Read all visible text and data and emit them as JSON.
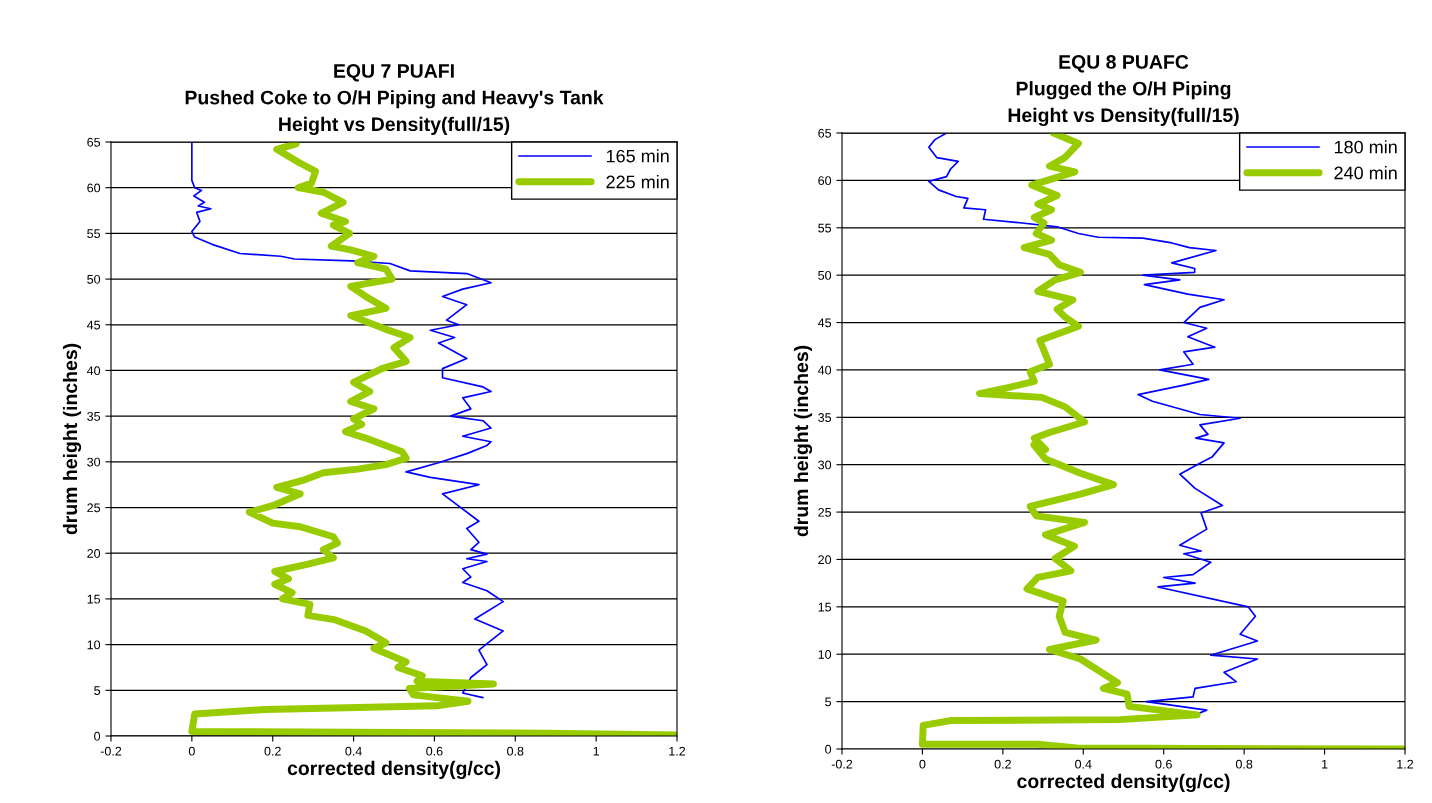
{
  "chart_data": [
    {
      "type": "line",
      "title": "EQU 7 PUAFI\nPushed Coke to O/H Piping and Heavy's Tank\nHeight vs Density(full/15)",
      "xlabel": "corrected density(g/cc)",
      "ylabel": "drum height (inches)",
      "xlim": [
        -0.2,
        1.2
      ],
      "xticks": [
        -0.2,
        0,
        0.2,
        0.4,
        0.6,
        0.8,
        1,
        1.2
      ],
      "ylim": [
        0,
        65
      ],
      "yticks": [
        0,
        5,
        10,
        15,
        20,
        25,
        30,
        35,
        40,
        45,
        50,
        55,
        60,
        65
      ],
      "grid": "y",
      "legend": "top right",
      "marker": "none",
      "line_style": "solid",
      "series": [
        {
          "name": "165 min",
          "color": "#0000ff",
          "x": [
            0.0,
            0.0,
            0.0,
            0.0,
            0.007,
            0.024,
            0.005,
            0.031,
            0.016,
            0.047,
            0.012,
            0.02,
            0.0,
            0.007,
            0.05,
            0.119,
            0.22,
            0.254,
            0.395,
            0.49,
            0.54,
            0.68,
            0.74,
            0.67,
            0.62,
            0.68,
            0.63,
            0.66,
            0.59,
            0.65,
            0.61,
            0.68,
            0.62,
            0.62,
            0.72,
            0.74,
            0.67,
            0.69,
            0.64,
            0.72,
            0.74,
            0.67,
            0.74,
            0.73,
            0.68,
            0.61,
            0.53,
            0.59,
            0.71,
            0.62,
            0.71,
            0.68,
            0.71,
            0.69,
            0.73,
            0.68,
            0.73,
            0.67,
            0.69,
            0.67,
            0.73,
            0.77,
            0.7,
            0.77,
            0.71,
            0.73,
            0.69,
            0.67,
            0.72
          ],
          "values": [
            65,
            64.6,
            62,
            60.8,
            60,
            59.7,
            59.1,
            58.4,
            58,
            57.7,
            57.3,
            56.3,
            55.2,
            54.6,
            53.8,
            52.8,
            52.5,
            52.2,
            52,
            51.7,
            50.9,
            50.6,
            49.6,
            48.9,
            48.1,
            47.2,
            45.5,
            45,
            44.4,
            43.6,
            43,
            41.3,
            40.2,
            39.2,
            38.2,
            37.7,
            37,
            35.8,
            35,
            34.5,
            33.7,
            32.8,
            32.2,
            31.8,
            30.9,
            29.9,
            28.9,
            28.3,
            27.5,
            26.5,
            23.5,
            22.7,
            21.2,
            20.4,
            19.9,
            19.4,
            19.1,
            18.3,
            17.4,
            16.8,
            15.9,
            14.7,
            12.8,
            11.5,
            9.4,
            7.8,
            6.4,
            4.7,
            4.2
          ]
        },
        {
          "name": "225 min",
          "color": "#99cc00",
          "x": [
            0.258,
            0.21,
            0.267,
            0.306,
            0.296,
            0.263,
            0.326,
            0.374,
            0.32,
            0.38,
            0.35,
            0.39,
            0.345,
            0.393,
            0.45,
            0.41,
            0.48,
            0.495,
            0.393,
            0.43,
            0.48,
            0.393,
            0.48,
            0.54,
            0.5,
            0.53,
            0.47,
            0.4,
            0.44,
            0.393,
            0.45,
            0.4,
            0.42,
            0.38,
            0.43,
            0.52,
            0.53,
            0.48,
            0.41,
            0.325,
            0.277,
            0.21,
            0.268,
            0.2,
            0.142,
            0.2,
            0.268,
            0.35,
            0.36,
            0.325,
            0.35,
            0.287,
            0.205,
            0.239,
            0.205,
            0.248,
            0.224,
            0.292,
            0.287,
            0.355,
            0.43,
            0.48,
            0.45,
            0.53,
            0.51,
            0.57,
            0.557,
            0.746,
            0.538,
            0.548,
            0.683,
            0.606,
            0.297,
            0.18,
            0.007,
            0.0,
            0.393,
            0.876,
            1.2
          ],
          "values": [
            64.8,
            64.2,
            62.7,
            61.8,
            60.5,
            60,
            59.5,
            58.4,
            57.2,
            56.3,
            55.9,
            55,
            53.6,
            53.2,
            52.5,
            51.8,
            51.1,
            50,
            49.2,
            48.1,
            46.8,
            46,
            44.5,
            43.6,
            42.5,
            41,
            40.2,
            38.7,
            37.7,
            36.6,
            35.8,
            34.7,
            34.1,
            33.3,
            32.6,
            31.1,
            30.4,
            29.7,
            29.2,
            28.8,
            28,
            27.2,
            26.5,
            25.2,
            24.5,
            23.3,
            22.9,
            21.8,
            21.1,
            20.4,
            19.5,
            18.8,
            18,
            17.2,
            16.6,
            15.7,
            15,
            14.4,
            13.2,
            12.7,
            11.5,
            10.2,
            9.6,
            8.1,
            7.5,
            6.6,
            6,
            5.7,
            5.2,
            4.5,
            3.8,
            3.3,
            3.0,
            2.9,
            2.4,
            0.5,
            0.4,
            0.3,
            0.1
          ]
        }
      ]
    },
    {
      "type": "line",
      "title": "EQU 8 PUAFC\nPlugged the O/H Piping\nHeight vs Density(full/15)",
      "xlabel": "corrected density(g/cc)",
      "ylabel": "drum height (inches)",
      "xlim": [
        -0.2,
        1.2
      ],
      "xticks": [
        -0.2,
        0,
        0.2,
        0.4,
        0.6,
        0.8,
        1,
        1.2
      ],
      "ylim": [
        0,
        65
      ],
      "yticks": [
        0,
        5,
        10,
        15,
        20,
        25,
        30,
        35,
        40,
        45,
        50,
        55,
        60,
        65
      ],
      "grid": "y",
      "legend": "top right",
      "marker": "none",
      "line_style": "solid",
      "series": [
        {
          "name": "180 min",
          "color": "#0000ff",
          "x": [
            0.06,
            0.031,
            0.016,
            0.036,
            0.089,
            0.07,
            0.06,
            0.016,
            0.04,
            0.084,
            0.113,
            0.103,
            0.157,
            0.152,
            0.248,
            0.335,
            0.388,
            0.437,
            0.548,
            0.62,
            0.664,
            0.73,
            0.62,
            0.677,
            0.677,
            0.548,
            0.64,
            0.552,
            0.66,
            0.75,
            0.69,
            0.65,
            0.707,
            0.66,
            0.727,
            0.65,
            0.673,
            0.59,
            0.712,
            0.65,
            0.536,
            0.572,
            0.69,
            0.79,
            0.69,
            0.71,
            0.68,
            0.75,
            0.72,
            0.683,
            0.64,
            0.678,
            0.746,
            0.693,
            0.707,
            0.64,
            0.693,
            0.65,
            0.717,
            0.673,
            0.6,
            0.678,
            0.586,
            0.81,
            0.828,
            0.79,
            0.833,
            0.717,
            0.833,
            0.75,
            0.78,
            0.678,
            0.673,
            0.557,
            0.707,
            0.683
          ],
          "values": [
            65,
            64.3,
            63.5,
            62.4,
            62,
            61.2,
            60.4,
            59.9,
            59,
            58.3,
            58.1,
            57.1,
            56.9,
            55.9,
            55.5,
            55.1,
            54.4,
            54,
            53.9,
            53.4,
            52.9,
            52.6,
            51.3,
            50.7,
            50.3,
            50,
            49.5,
            49,
            48,
            47.4,
            46.6,
            45,
            44.4,
            43.5,
            42.4,
            41.9,
            40.6,
            40,
            39,
            38.4,
            37.4,
            36.7,
            35.3,
            34.9,
            34.2,
            33.2,
            32.8,
            32.3,
            30.8,
            30,
            29,
            27.5,
            25.7,
            24.9,
            23.2,
            21.5,
            20.9,
            20.6,
            19.7,
            18.4,
            18.1,
            17.5,
            17.1,
            15,
            14,
            12.1,
            11.4,
            9.9,
            9.5,
            8.1,
            7.1,
            6.4,
            5.5,
            5,
            4.1,
            3.7
          ]
        },
        {
          "name": "240 min",
          "color": "#99cc00",
          "x": [
            0.326,
            0.388,
            0.354,
            0.316,
            0.379,
            0.272,
            0.335,
            0.287,
            0.321,
            0.278,
            0.302,
            0.283,
            0.321,
            0.253,
            0.316,
            0.34,
            0.393,
            0.33,
            0.287,
            0.374,
            0.335,
            0.354,
            0.388,
            0.292,
            0.316,
            0.268,
            0.278,
            0.21,
            0.142,
            0.297,
            0.355,
            0.403,
            0.316,
            0.278,
            0.306,
            0.277,
            0.306,
            0.393,
            0.475,
            0.393,
            0.268,
            0.283,
            0.403,
            0.306,
            0.378,
            0.33,
            0.369,
            0.287,
            0.26,
            0.35,
            0.34,
            0.355,
            0.432,
            0.316,
            0.393,
            0.485,
            0.45,
            0.509,
            0.514,
            0.683,
            0.49,
            0.07,
            0.002,
            0.0,
            0.287,
            0.384,
            1.2
          ],
          "values": [
            65,
            63.9,
            62.4,
            61.5,
            60.9,
            59.5,
            58.4,
            57.5,
            56.9,
            56.1,
            55.5,
            54.4,
            53.7,
            52.9,
            52.2,
            51.1,
            50.3,
            49.5,
            48.3,
            47.4,
            46.4,
            45.6,
            44.6,
            43.1,
            40.6,
            39.8,
            38.8,
            38.1,
            37.5,
            37.1,
            36.1,
            34.5,
            33.4,
            32.8,
            31.6,
            32.1,
            30.6,
            29.1,
            27.9,
            26.9,
            25.6,
            24.6,
            23.9,
            22.6,
            21.4,
            20.1,
            18.8,
            18.1,
            16.9,
            15.6,
            14,
            12.3,
            11.5,
            10.5,
            9.5,
            7,
            6.4,
            5.8,
            4.5,
            3.6,
            3.1,
            3.0,
            2.5,
            0.5,
            0.5,
            0.1,
            0
          ]
        }
      ]
    }
  ]
}
